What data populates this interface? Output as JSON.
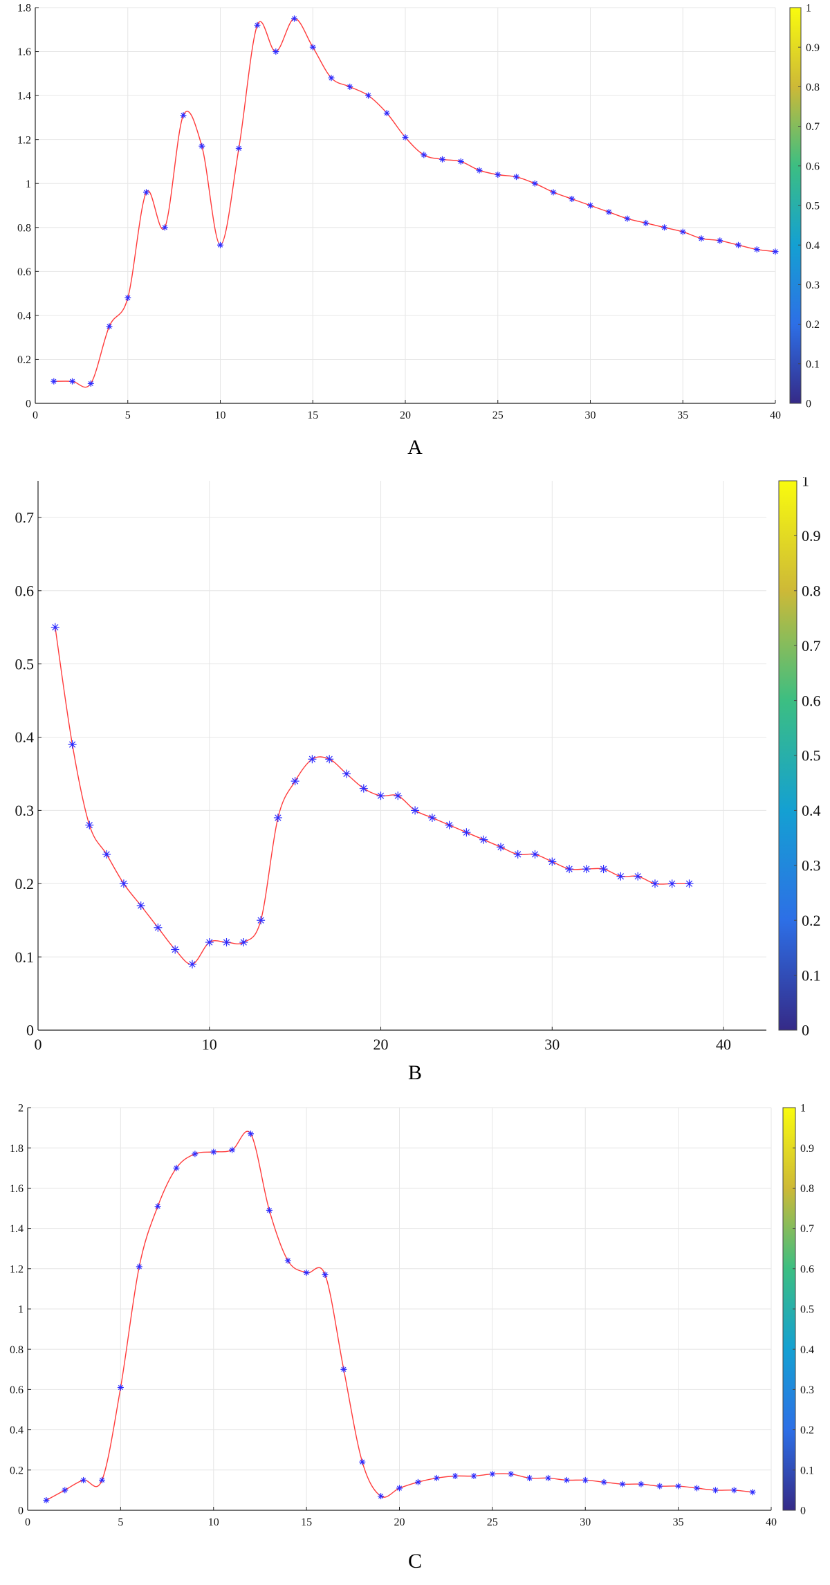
{
  "colors": {
    "line": "#ff3b3b",
    "marker": "#2b2bff",
    "grid": "#e6e6e6",
    "axis": "#222222"
  },
  "colorbar_ticks": [
    "0",
    "0.1",
    "0.2",
    "0.3",
    "0.4",
    "0.5",
    "0.6",
    "0.7",
    "0.8",
    "0.9",
    "1"
  ],
  "chart_data": [
    {
      "type": "line",
      "label": "A",
      "x": [
        1,
        2,
        3,
        4,
        5,
        6,
        7,
        8,
        9,
        10,
        11,
        12,
        13,
        14,
        15,
        16,
        17,
        18,
        19,
        20,
        21,
        22,
        23,
        24,
        25,
        26,
        27,
        28,
        29,
        30,
        31,
        32,
        33,
        34,
        35,
        36,
        37,
        38,
        39,
        40
      ],
      "values": [
        0.1,
        0.1,
        0.09,
        0.35,
        0.48,
        0.96,
        0.8,
        1.31,
        1.17,
        0.72,
        1.16,
        1.72,
        1.6,
        1.75,
        1.62,
        1.48,
        1.44,
        1.4,
        1.32,
        1.21,
        1.13,
        1.11,
        1.1,
        1.06,
        1.04,
        1.03,
        1.0,
        0.96,
        0.93,
        0.9,
        0.87,
        0.84,
        0.82,
        0.8,
        0.78,
        0.75,
        0.74,
        0.72,
        0.7,
        0.69
      ],
      "xlim": [
        0,
        40
      ],
      "ylim": [
        0,
        1.8
      ],
      "xticks": [
        "0",
        "5",
        "10",
        "15",
        "20",
        "25",
        "30",
        "35",
        "40"
      ],
      "yticks": [
        "0",
        "0.2",
        "0.4",
        "0.6",
        "0.8",
        "1",
        "1.2",
        "1.4",
        "1.6",
        "1.8"
      ],
      "grid": true,
      "colorbar": true
    },
    {
      "type": "line",
      "label": "B",
      "x": [
        1,
        2,
        3,
        4,
        5,
        6,
        7,
        8,
        9,
        10,
        11,
        12,
        13,
        14,
        15,
        16,
        17,
        18,
        19,
        20,
        21,
        22,
        23,
        24,
        25,
        26,
        27,
        28,
        29,
        30,
        31,
        32,
        33,
        34,
        35,
        36,
        37,
        38
      ],
      "values": [
        0.55,
        0.39,
        0.28,
        0.24,
        0.2,
        0.17,
        0.14,
        0.11,
        0.09,
        0.12,
        0.12,
        0.12,
        0.15,
        0.29,
        0.34,
        0.37,
        0.37,
        0.35,
        0.33,
        0.32,
        0.32,
        0.3,
        0.29,
        0.28,
        0.27,
        0.26,
        0.25,
        0.24,
        0.24,
        0.23,
        0.22,
        0.22,
        0.22,
        0.21,
        0.21,
        0.2,
        0.2,
        0.2
      ],
      "xlim": [
        0,
        42.5
      ],
      "ylim": [
        0,
        0.75
      ],
      "xticks": [
        "0",
        "10",
        "20",
        "30",
        "40"
      ],
      "yticks": [
        "0",
        "0.1",
        "0.2",
        "0.3",
        "0.4",
        "0.5",
        "0.6",
        "0.7"
      ],
      "grid": true,
      "colorbar": true
    },
    {
      "type": "line",
      "label": "C",
      "x": [
        1,
        2,
        3,
        4,
        5,
        6,
        7,
        8,
        9,
        10,
        11,
        12,
        13,
        14,
        15,
        16,
        17,
        18,
        19,
        20,
        21,
        22,
        23,
        24,
        25,
        26,
        27,
        28,
        29,
        30,
        31,
        32,
        33,
        34,
        35,
        36,
        37,
        38,
        39
      ],
      "values": [
        0.05,
        0.1,
        0.15,
        0.15,
        0.61,
        1.21,
        1.51,
        1.7,
        1.77,
        1.78,
        1.79,
        1.87,
        1.49,
        1.24,
        1.18,
        1.17,
        0.7,
        0.24,
        0.07,
        0.11,
        0.14,
        0.16,
        0.17,
        0.17,
        0.18,
        0.18,
        0.16,
        0.16,
        0.15,
        0.15,
        0.14,
        0.13,
        0.13,
        0.12,
        0.12,
        0.11,
        0.1,
        0.1,
        0.09
      ],
      "xlim": [
        0,
        40
      ],
      "ylim": [
        0,
        2
      ],
      "xticks": [
        "0",
        "5",
        "10",
        "15",
        "20",
        "25",
        "30",
        "35",
        "40"
      ],
      "yticks": [
        "0",
        "0.2",
        "0.4",
        "0.6",
        "0.8",
        "1",
        "1.2",
        "1.4",
        "1.6",
        "1.8",
        "2"
      ],
      "grid": true,
      "colorbar": true
    }
  ]
}
